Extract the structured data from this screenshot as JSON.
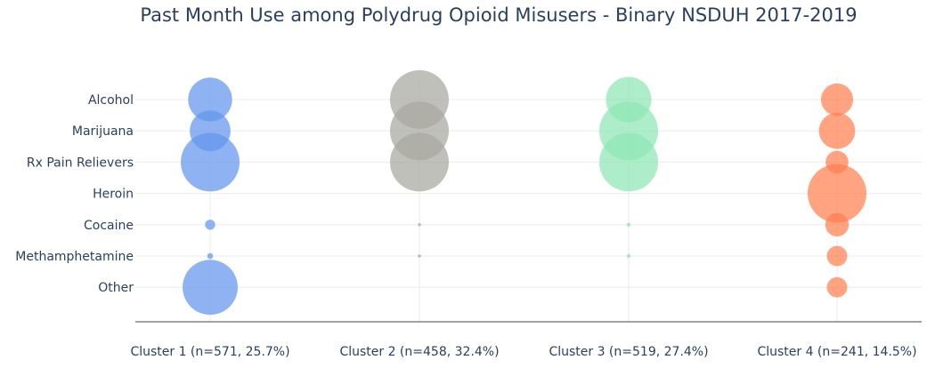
{
  "chart_data": {
    "type": "scatter",
    "title": "Past Month Use among Polydrug Opioid Misusers - Binary NSDUH 2017-2019",
    "categories": [
      "Cluster 1 (n=571, 25.7%)",
      "Cluster 2 (n=458, 32.4%)",
      "Cluster 3 (n=519, 27.4%)",
      "Cluster 4 (n=241, 14.5%)"
    ],
    "y_categories": [
      "Alcohol",
      "Marijuana",
      "Rx Pain Relievers",
      "Heroin",
      "Cocaine",
      "Methamphetamine",
      "Other"
    ],
    "xlabel": "",
    "ylabel": "",
    "grid": true,
    "legend": "none",
    "series": [
      {
        "values": [
          56,
          48,
          100,
          0,
          3,
          1,
          88
        ],
        "color": "#6495ED"
      },
      {
        "values": [
          100,
          100,
          100,
          0,
          0.3,
          0.3,
          0
        ],
        "color": "#A8A89F"
      },
      {
        "values": [
          60,
          100,
          100,
          0,
          0.5,
          0.5,
          0
        ],
        "color": "#8FE6B4"
      },
      {
        "values": [
          30,
          38,
          15,
          100,
          16,
          12,
          12
        ],
        "color": "#FF7F50"
      }
    ]
  }
}
